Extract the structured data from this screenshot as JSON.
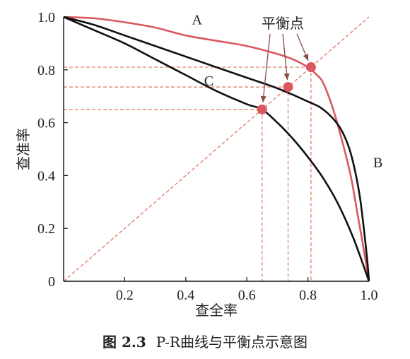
{
  "caption": {
    "label": "图 2.3",
    "text": "P-R曲线与平衡点示意图"
  },
  "colors": {
    "red": "#d9575f",
    "black": "#111111",
    "dashed": "#d97a5e"
  },
  "chart_data": {
    "type": "line",
    "xlabel": "查全率",
    "ylabel": "查准率",
    "xlim": [
      0,
      1
    ],
    "ylim": [
      0,
      1
    ],
    "x_ticks": [
      "0.2",
      "0.4",
      "0.6",
      "0.8",
      "1.0"
    ],
    "y_ticks": [
      "0",
      "0.2",
      "0.4",
      "0.6",
      "0.8",
      "1.0"
    ],
    "grid": false,
    "series": [
      {
        "name": "A",
        "color": "red",
        "points": [
          [
            0,
            1.0
          ],
          [
            0.1,
            0.995
          ],
          [
            0.2,
            0.98
          ],
          [
            0.3,
            0.96
          ],
          [
            0.4,
            0.93
          ],
          [
            0.5,
            0.91
          ],
          [
            0.6,
            0.89
          ],
          [
            0.7,
            0.86
          ],
          [
            0.75,
            0.84
          ],
          [
            0.8,
            0.81
          ],
          [
            0.83,
            0.78
          ],
          [
            0.85,
            0.75
          ],
          [
            0.88,
            0.66
          ],
          [
            0.91,
            0.54
          ],
          [
            0.94,
            0.4
          ],
          [
            0.96,
            0.27
          ],
          [
            0.98,
            0.14
          ],
          [
            1.0,
            0.0
          ]
        ]
      },
      {
        "name": "B",
        "color": "black",
        "points": [
          [
            0,
            1.0
          ],
          [
            0.1,
            0.97
          ],
          [
            0.2,
            0.93
          ],
          [
            0.3,
            0.89
          ],
          [
            0.4,
            0.85
          ],
          [
            0.5,
            0.81
          ],
          [
            0.6,
            0.77
          ],
          [
            0.7,
            0.73
          ],
          [
            0.8,
            0.68
          ],
          [
            0.85,
            0.65
          ],
          [
            0.9,
            0.59
          ],
          [
            0.93,
            0.52
          ],
          [
            0.95,
            0.44
          ],
          [
            0.97,
            0.32
          ],
          [
            0.985,
            0.18
          ],
          [
            0.995,
            0.07
          ],
          [
            1.0,
            0.0
          ]
        ]
      },
      {
        "name": "C",
        "color": "black",
        "points": [
          [
            0,
            1.0
          ],
          [
            0.1,
            0.95
          ],
          [
            0.2,
            0.9
          ],
          [
            0.3,
            0.84
          ],
          [
            0.4,
            0.78
          ],
          [
            0.5,
            0.72
          ],
          [
            0.6,
            0.67
          ],
          [
            0.65,
            0.65
          ],
          [
            0.7,
            0.6
          ],
          [
            0.75,
            0.54
          ],
          [
            0.8,
            0.47
          ],
          [
            0.85,
            0.39
          ],
          [
            0.9,
            0.29
          ],
          [
            0.95,
            0.16
          ],
          [
            1.0,
            0.0
          ]
        ]
      }
    ],
    "reference_line": {
      "from": [
        0,
        0
      ],
      "to": [
        1,
        1
      ],
      "style": "dashed"
    },
    "break_even_points": [
      {
        "x": 0.65,
        "y": 0.65
      },
      {
        "x": 0.735,
        "y": 0.735
      },
      {
        "x": 0.81,
        "y": 0.81
      }
    ],
    "curve_labels": [
      {
        "text": "A",
        "x": 0.42,
        "y": 0.99
      },
      {
        "text": "B",
        "x": 1.0,
        "y": 0.45
      },
      {
        "text": "C",
        "x": 0.46,
        "y": 0.76
      }
    ],
    "annotation": {
      "text": "平衡点"
    }
  }
}
